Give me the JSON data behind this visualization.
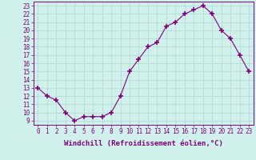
{
  "hours": [
    0,
    1,
    2,
    3,
    4,
    5,
    6,
    7,
    8,
    9,
    10,
    11,
    12,
    13,
    14,
    15,
    16,
    17,
    18,
    19,
    20,
    21,
    22,
    23
  ],
  "values": [
    13,
    12,
    11.5,
    10,
    9,
    9.5,
    9.5,
    9.5,
    10,
    12,
    15,
    16.5,
    18,
    18.5,
    20.5,
    21,
    22,
    22.5,
    23,
    22,
    20,
    19,
    17,
    15
  ],
  "line_color": "#800080",
  "marker": "+",
  "marker_size": 4,
  "bg_color": "#cff0eb",
  "grid_color": "#b0d8d0",
  "xlabel": "Windchill (Refroidissement éolien,°C)",
  "xlim": [
    -0.5,
    23.5
  ],
  "ylim": [
    8.5,
    23.5
  ],
  "yticks": [
    9,
    10,
    11,
    12,
    13,
    14,
    15,
    16,
    17,
    18,
    19,
    20,
    21,
    22,
    23
  ],
  "xticks": [
    0,
    1,
    2,
    3,
    4,
    5,
    6,
    7,
    8,
    9,
    10,
    11,
    12,
    13,
    14,
    15,
    16,
    17,
    18,
    19,
    20,
    21,
    22,
    23
  ],
  "tick_label_color": "#800080",
  "axis_color": "#800080",
  "font_size": 5.5,
  "xlabel_font_size": 6.5
}
